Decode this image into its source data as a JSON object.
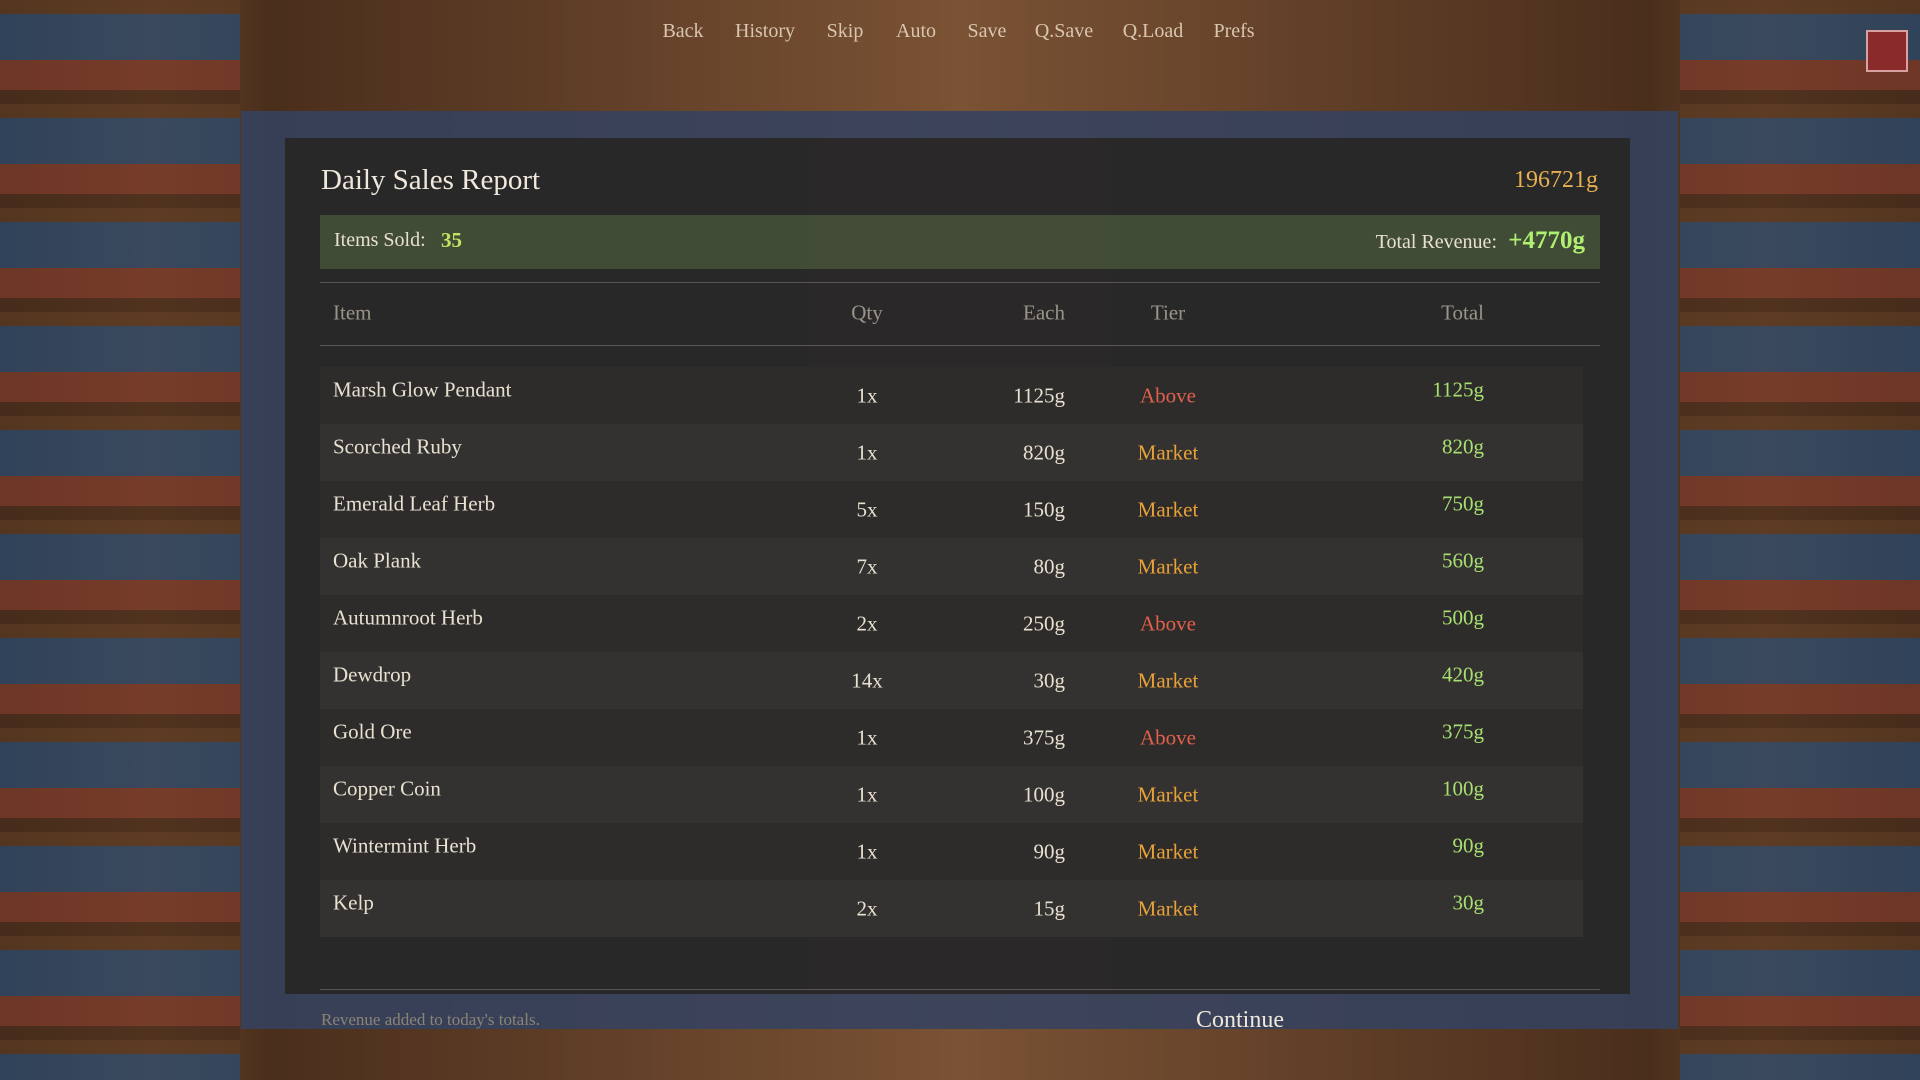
{
  "menu": [
    "Back",
    "History",
    "Skip",
    "Auto",
    "Save",
    "Q.Save",
    "Q.Load",
    "Prefs"
  ],
  "header": {
    "title": "Daily Sales Report",
    "gold": "196721g"
  },
  "summary": {
    "items_sold_label": "Items Sold:",
    "items_sold": "35",
    "revenue_label": "Total Revenue:",
    "revenue": "+4770g"
  },
  "table": {
    "columns": [
      "Item",
      "Qty",
      "Each",
      "Tier",
      "Total"
    ],
    "rows": [
      {
        "item": "Marsh Glow Pendant",
        "qty": "1x",
        "each": "1125g",
        "tier": "Above",
        "tier_color": "#e0604c",
        "total": "1125g"
      },
      {
        "item": "Scorched Ruby",
        "qty": "1x",
        "each": "820g",
        "tier": "Market",
        "tier_color": "#e8a038",
        "total": "820g"
      },
      {
        "item": "Emerald Leaf Herb",
        "qty": "5x",
        "each": "150g",
        "tier": "Market",
        "tier_color": "#e8a038",
        "total": "750g"
      },
      {
        "item": "Oak Plank",
        "qty": "7x",
        "each": "80g",
        "tier": "Market",
        "tier_color": "#e8a038",
        "total": "560g"
      },
      {
        "item": "Autumnroot Herb",
        "qty": "2x",
        "each": "250g",
        "tier": "Above",
        "tier_color": "#e0604c",
        "total": "500g"
      },
      {
        "item": "Dewdrop",
        "qty": "14x",
        "each": "30g",
        "tier": "Market",
        "tier_color": "#e8a038",
        "total": "420g"
      },
      {
        "item": "Gold Ore",
        "qty": "1x",
        "each": "375g",
        "tier": "Above",
        "tier_color": "#e0604c",
        "total": "375g"
      },
      {
        "item": "Copper Coin",
        "qty": "1x",
        "each": "100g",
        "tier": "Market",
        "tier_color": "#e8a038",
        "total": "100g"
      },
      {
        "item": "Wintermint Herb",
        "qty": "1x",
        "each": "90g",
        "tier": "Market",
        "tier_color": "#e8a038",
        "total": "90g"
      },
      {
        "item": "Kelp",
        "qty": "2x",
        "each": "15g",
        "tier": "Market",
        "tier_color": "#e8a038",
        "total": "30g"
      }
    ]
  },
  "footer": {
    "note": "Revenue added to today's totals.",
    "continue": "Continue"
  }
}
